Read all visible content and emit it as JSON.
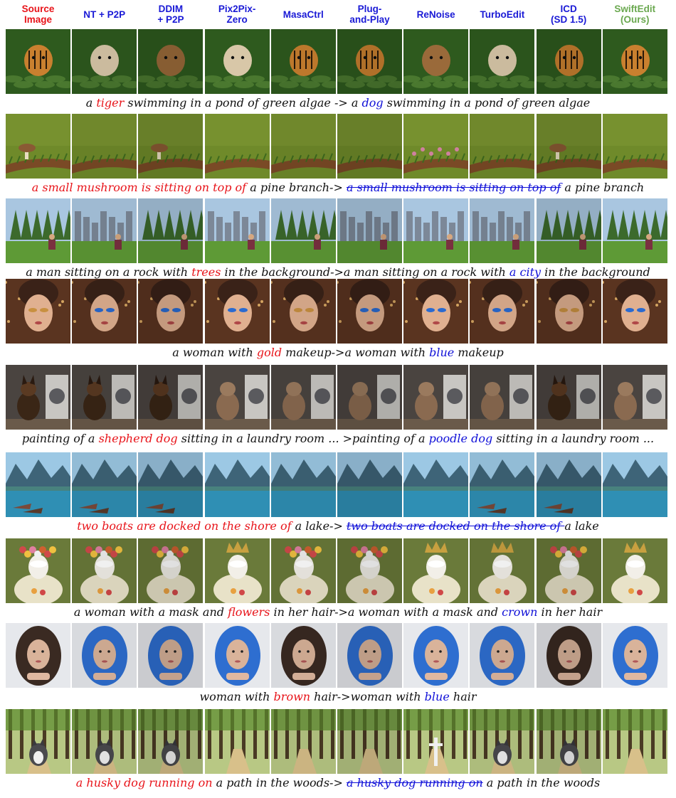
{
  "headers": [
    {
      "label": "Source\nImage",
      "color": "#e8141a"
    },
    {
      "label": "NT + P2P",
      "color": "#1a1ad6"
    },
    {
      "label": "DDIM\n+ P2P",
      "color": "#1a1ad6"
    },
    {
      "label": "Pix2Pix-\nZero",
      "color": "#1a1ad6"
    },
    {
      "label": "MasaCtrl",
      "color": "#1a1ad6"
    },
    {
      "label": "Plug-\nand-Play",
      "color": "#1a1ad6"
    },
    {
      "label": "ReNoise",
      "color": "#1a1ad6"
    },
    {
      "label": "TurboEdit",
      "color": "#1a1ad6"
    },
    {
      "label": "ICD\n(SD 1.5)",
      "color": "#1a1ad6"
    },
    {
      "label": "SwiftEdit\n(Ours)",
      "color": "#6aa84f"
    }
  ],
  "rows": [
    {
      "id": "tiger-dog",
      "theme": {
        "bg": "#2e5a1e",
        "accent": "#5e8c3a",
        "subject": "#c9802f",
        "variant": "pond"
      },
      "subjects": [
        "tiger",
        "dog",
        "dog",
        "dog",
        "tiger",
        "tiger",
        "dog",
        "dog",
        "tiger",
        "tiger"
      ],
      "caption": [
        {
          "text": "a ",
          "style": "plain"
        },
        {
          "text": "tiger",
          "style": "src"
        },
        {
          "text": " swimming in a pond of green algae -> a ",
          "style": "plain"
        },
        {
          "text": "dog",
          "style": "tgt"
        },
        {
          "text": " swimming in a pond of green algae",
          "style": "plain"
        }
      ]
    },
    {
      "id": "mushroom-branch",
      "theme": {
        "bg": "#5f7a22",
        "accent": "#86a33a",
        "subject": "#8a5a34",
        "variant": "branch"
      },
      "subjects": [
        "mushroom",
        "none",
        "mushroom",
        "branch",
        "none",
        "branch",
        "flowers",
        "branch",
        "mushroom",
        "none"
      ],
      "caption": [
        {
          "text": "a small mushroom is sitting on top of",
          "style": "src"
        },
        {
          "text": " a pine branch-> ",
          "style": "plain"
        },
        {
          "text": "a small mushroom is sitting on top of",
          "style": "strike"
        },
        {
          "text": " a pine branch",
          "style": "plain"
        }
      ]
    },
    {
      "id": "trees-city",
      "theme": {
        "bg": "#a9c6e0",
        "accent": "#4e7d35",
        "subject": "#7a3040",
        "variant": "park"
      },
      "subjects": [
        "trees",
        "city",
        "trees",
        "city",
        "trees",
        "city",
        "city",
        "city",
        "trees",
        "trees"
      ],
      "caption": [
        {
          "text": "a man sitting on a rock with ",
          "style": "plain"
        },
        {
          "text": "trees",
          "style": "src"
        },
        {
          "text": " in the background->a man sitting on a rock with ",
          "style": "plain"
        },
        {
          "text": "a city",
          "style": "tgt"
        },
        {
          "text": " in the background",
          "style": "plain"
        }
      ]
    },
    {
      "id": "gold-blue-makeup",
      "theme": {
        "bg": "#5a3420",
        "accent": "#d9a05a",
        "subject": "#e0b090",
        "variant": "face"
      },
      "subjects": [
        "gold",
        "blue",
        "blue",
        "blue",
        "gold",
        "blue",
        "blue",
        "blue",
        "gold",
        "blue"
      ],
      "caption": [
        {
          "text": "a woman with ",
          "style": "plain"
        },
        {
          "text": "gold",
          "style": "src"
        },
        {
          "text": " makeup->a woman with ",
          "style": "plain"
        },
        {
          "text": "blue",
          "style": "tgt"
        },
        {
          "text": " makeup",
          "style": "plain"
        }
      ]
    },
    {
      "id": "shepherd-poodle",
      "theme": {
        "bg": "#4a4440",
        "accent": "#8e8a86",
        "subject": "#5a3a22",
        "variant": "laundry"
      },
      "subjects": [
        "shepherd",
        "shepherd",
        "shepherd",
        "poodle",
        "poodle",
        "poodle",
        "poodle",
        "poodle",
        "shepherd",
        "poodle"
      ],
      "caption": [
        {
          "text": "painting of a ",
          "style": "plain"
        },
        {
          "text": "shepherd dog",
          "style": "src"
        },
        {
          "text": " sitting in a laundry room ... >painting of a ",
          "style": "plain"
        },
        {
          "text": "poodle dog",
          "style": "tgt"
        },
        {
          "text": " sitting in a laundry room ...",
          "style": "plain"
        }
      ]
    },
    {
      "id": "boats-lake",
      "theme": {
        "bg": "#7fb6d8",
        "accent": "#2f7c9e",
        "subject": "#7a4a3a",
        "variant": "lake"
      },
      "subjects": [
        "boats",
        "boats",
        "boats",
        "none",
        "none",
        "none",
        "none",
        "boats",
        "boats",
        "none"
      ],
      "caption": [
        {
          "text": "two boats are docked on the shore of",
          "style": "src"
        },
        {
          "text": " a lake-> ",
          "style": "plain"
        },
        {
          "text": "two boats are docked on the shore of ",
          "style": "strike"
        },
        {
          "text": " a lake",
          "style": "plain"
        }
      ]
    },
    {
      "id": "flowers-crown",
      "theme": {
        "bg": "#6a7a3a",
        "accent": "#c8b48a",
        "subject": "#f2efe8",
        "variant": "mask"
      },
      "subjects": [
        "flowers",
        "flowers",
        "flowers",
        "crown",
        "flowers",
        "flowers",
        "crown",
        "crown",
        "flowers",
        "crown"
      ],
      "caption": [
        {
          "text": "a woman with a mask and ",
          "style": "plain"
        },
        {
          "text": "flowers",
          "style": "src"
        },
        {
          "text": " in her hair->a woman with a mask and ",
          "style": "plain"
        },
        {
          "text": "crown",
          "style": "tgt"
        },
        {
          "text": " in her hair",
          "style": "plain"
        }
      ]
    },
    {
      "id": "brown-blue-hair",
      "theme": {
        "bg": "#e6e8ec",
        "accent": "#d9b39a",
        "subject": "#3a2a22",
        "variant": "hair"
      },
      "subjects": [
        "brown",
        "blue",
        "blue",
        "blue",
        "brown",
        "blue",
        "blue",
        "blue",
        "brown",
        "blue"
      ],
      "caption": [
        {
          "text": "woman with ",
          "style": "plain"
        },
        {
          "text": "brown",
          "style": "src"
        },
        {
          "text": " hair->woman with ",
          "style": "plain"
        },
        {
          "text": "blue",
          "style": "tgt"
        },
        {
          "text": " hair",
          "style": "plain"
        }
      ]
    },
    {
      "id": "husky-woods",
      "theme": {
        "bg": "#6f8a3a",
        "accent": "#c9c28a",
        "subject": "#4a4a4e",
        "variant": "woods"
      },
      "subjects": [
        "husky",
        "husky",
        "husky",
        "none",
        "none",
        "none",
        "cross",
        "husky",
        "husky",
        "none"
      ],
      "caption": [
        {
          "text": "a husky dog running on",
          "style": "src"
        },
        {
          "text": " a path in the woods-> ",
          "style": "plain"
        },
        {
          "text": "a husky dog running on",
          "style": "strike"
        },
        {
          "text": " a path in the woods",
          "style": "plain"
        }
      ]
    }
  ]
}
